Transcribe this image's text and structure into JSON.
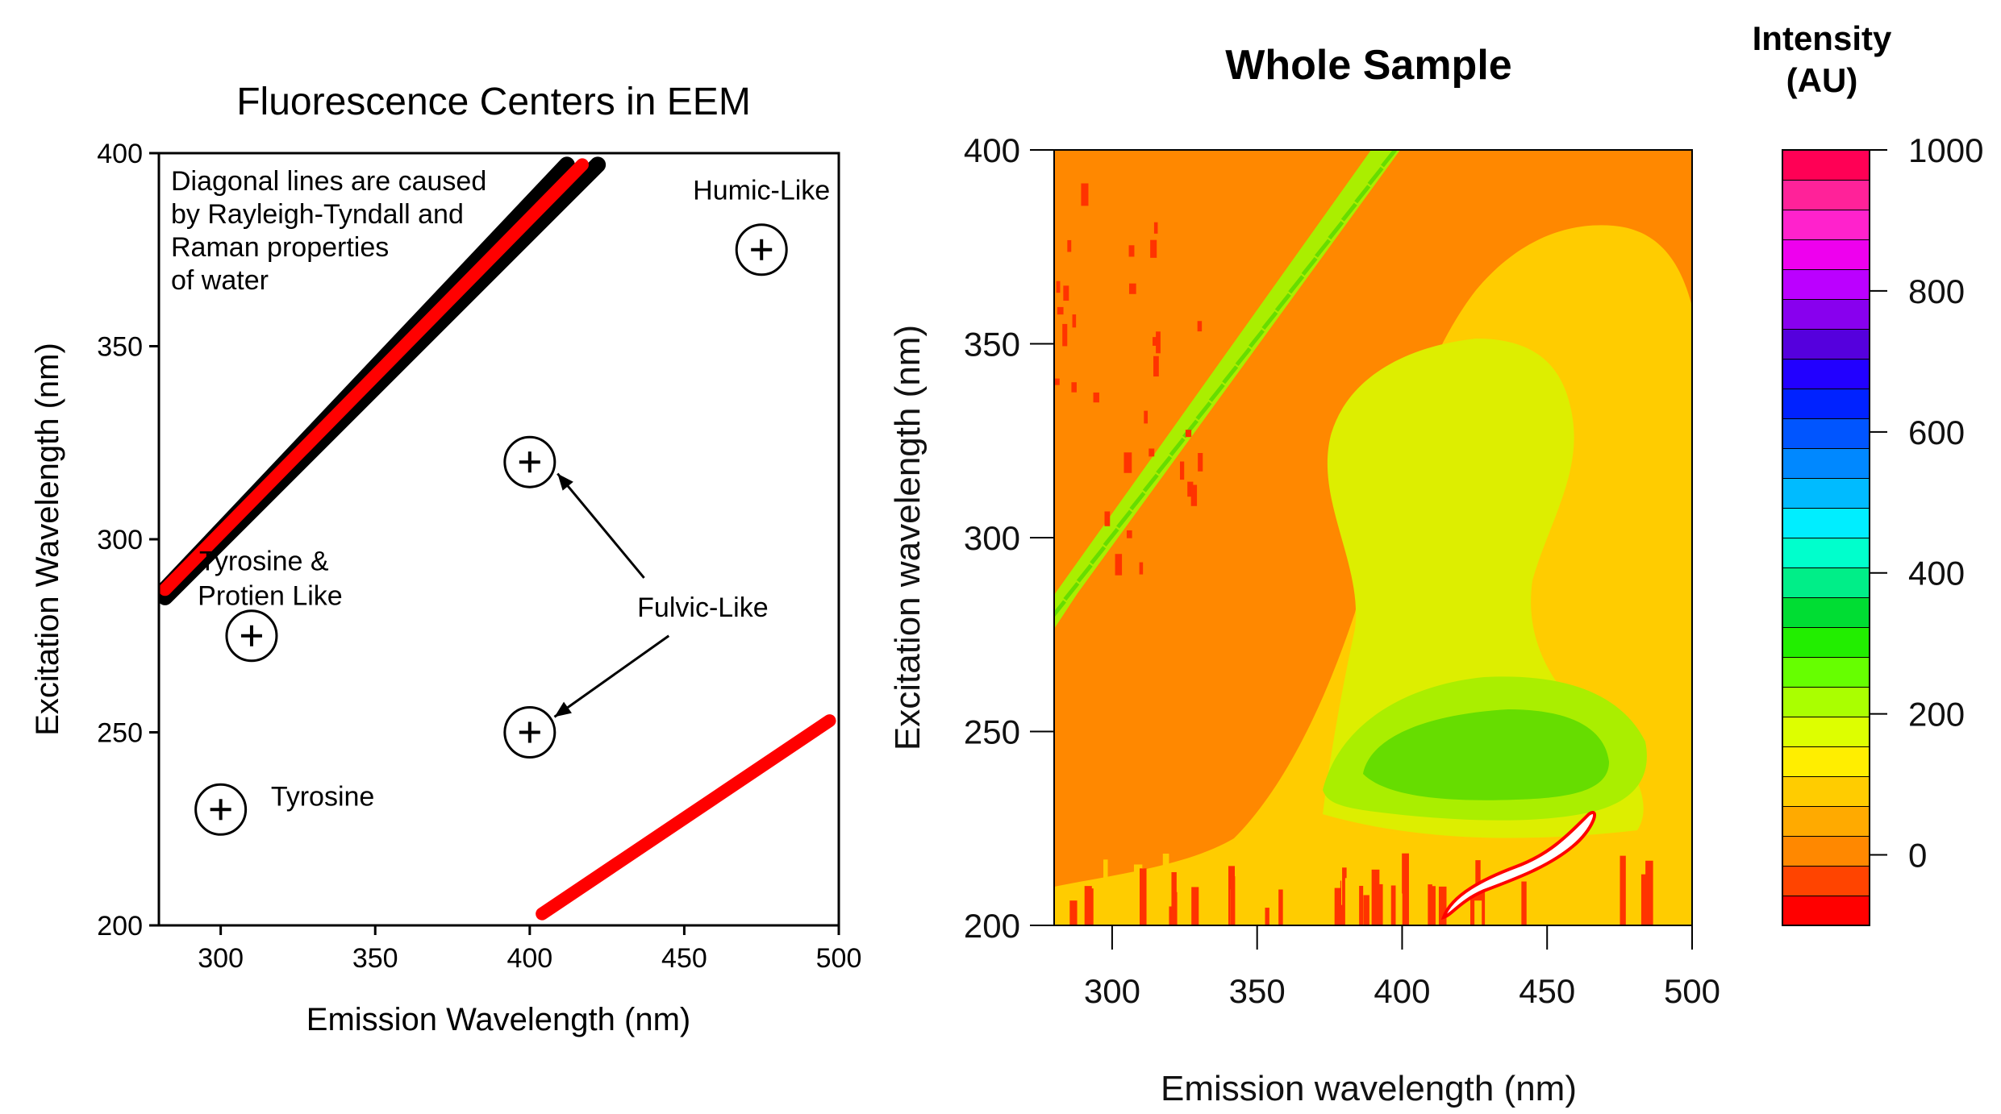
{
  "chart_data": [
    {
      "type": "scatter",
      "title": "Fluorescence Centers in EEM",
      "xlabel": "Emission Wavelength (nm)",
      "ylabel": "Excitation Wavelength (nm)",
      "xlim": [
        280,
        500
      ],
      "ylim": [
        200,
        400
      ],
      "xticks": [
        "300",
        "350",
        "400",
        "450",
        "500"
      ],
      "yticks": [
        "200",
        "250",
        "300",
        "350",
        "400"
      ],
      "grid": false,
      "note": [
        "Diagonal lines are caused",
        "by Rayleigh-Tyndall and",
        "Raman properties",
        "of water"
      ],
      "centers": [
        {
          "x": 475,
          "y": 375
        },
        {
          "x": 400,
          "y": 320
        },
        {
          "x": 310,
          "y": 275
        },
        {
          "x": 400,
          "y": 250
        },
        {
          "x": 300,
          "y": 230
        }
      ],
      "labels": [
        {
          "text": "Humic-Like",
          "x": 475,
          "y": 388
        },
        {
          "text": "Tyrosine &",
          "x": 314,
          "y": 292
        },
        {
          "text": "Protien Like",
          "x": 316,
          "y": 283
        },
        {
          "text": "Fulvic-Like",
          "x": 456,
          "y": 280
        },
        {
          "text": "Tyrosine",
          "x": 333,
          "y": 231
        }
      ],
      "arrows": [
        {
          "from": [
            437,
            290
          ],
          "to": [
            409,
            317
          ]
        },
        {
          "from": [
            445,
            275
          ],
          "to": [
            408,
            254
          ]
        }
      ],
      "lines": [
        {
          "color": "#000000",
          "points": [
            [
              282,
              287
            ],
            [
              412,
              397
            ]
          ]
        },
        {
          "color": "#000000",
          "points": [
            [
              282,
              285
            ],
            [
              422,
              397
            ]
          ]
        },
        {
          "color": "#ff0000",
          "points": [
            [
              282,
              287
            ],
            [
              417,
              397
            ]
          ]
        },
        {
          "color": "#ff0000",
          "points": [
            [
              404,
              203
            ],
            [
              497,
              253
            ]
          ]
        }
      ]
    },
    {
      "type": "heatmap",
      "title": "Whole Sample",
      "xlabel": "Emission wavelength (nm)",
      "ylabel": "Excitation wavelength (nm)",
      "xlim": [
        280,
        500
      ],
      "ylim": [
        200,
        400
      ],
      "xticks": [
        "300",
        "350",
        "400",
        "450",
        "500"
      ],
      "yticks": [
        "200",
        "250",
        "300",
        "350",
        "400"
      ],
      "colorbar": {
        "title_line1": "Intensity",
        "title_line2": "(AU)",
        "min": -100,
        "max": 1000,
        "ticks": [
          "0",
          "200",
          "400",
          "600",
          "800",
          "1000"
        ],
        "tick_values": [
          0,
          200,
          400,
          600,
          800,
          1000
        ],
        "colors": [
          "#ff0000",
          "#ff4400",
          "#ff8800",
          "#ffaa00",
          "#ffcc00",
          "#ffee00",
          "#ddff00",
          "#aaff00",
          "#66ff00",
          "#22ee00",
          "#00dd33",
          "#00ee88",
          "#00ffcc",
          "#00eeff",
          "#00bbff",
          "#0088ff",
          "#0055ff",
          "#0022ff",
          "#2200ff",
          "#5500dd",
          "#8800ee",
          "#bb00ff",
          "#ee00ee",
          "#ff22cc",
          "#ff2299",
          "#ff0055"
        ]
      },
      "regions": [
        {
          "name": "background",
          "level": 0
        },
        {
          "name": "broad-hump",
          "level": 60
        },
        {
          "name": "upper-plume",
          "level": 110
        },
        {
          "name": "lower-core",
          "level": 160
        },
        {
          "name": "lower-peak",
          "level": 210
        },
        {
          "name": "rayleigh-band",
          "level": 170
        }
      ],
      "colors": {
        "background": "#ff8800",
        "hump": "#ffcc00",
        "plume": "#ddee00",
        "core": "#aaee00",
        "peak": "#66dd00",
        "noise": "#ff3300",
        "saturated": "#ffffff"
      }
    }
  ]
}
